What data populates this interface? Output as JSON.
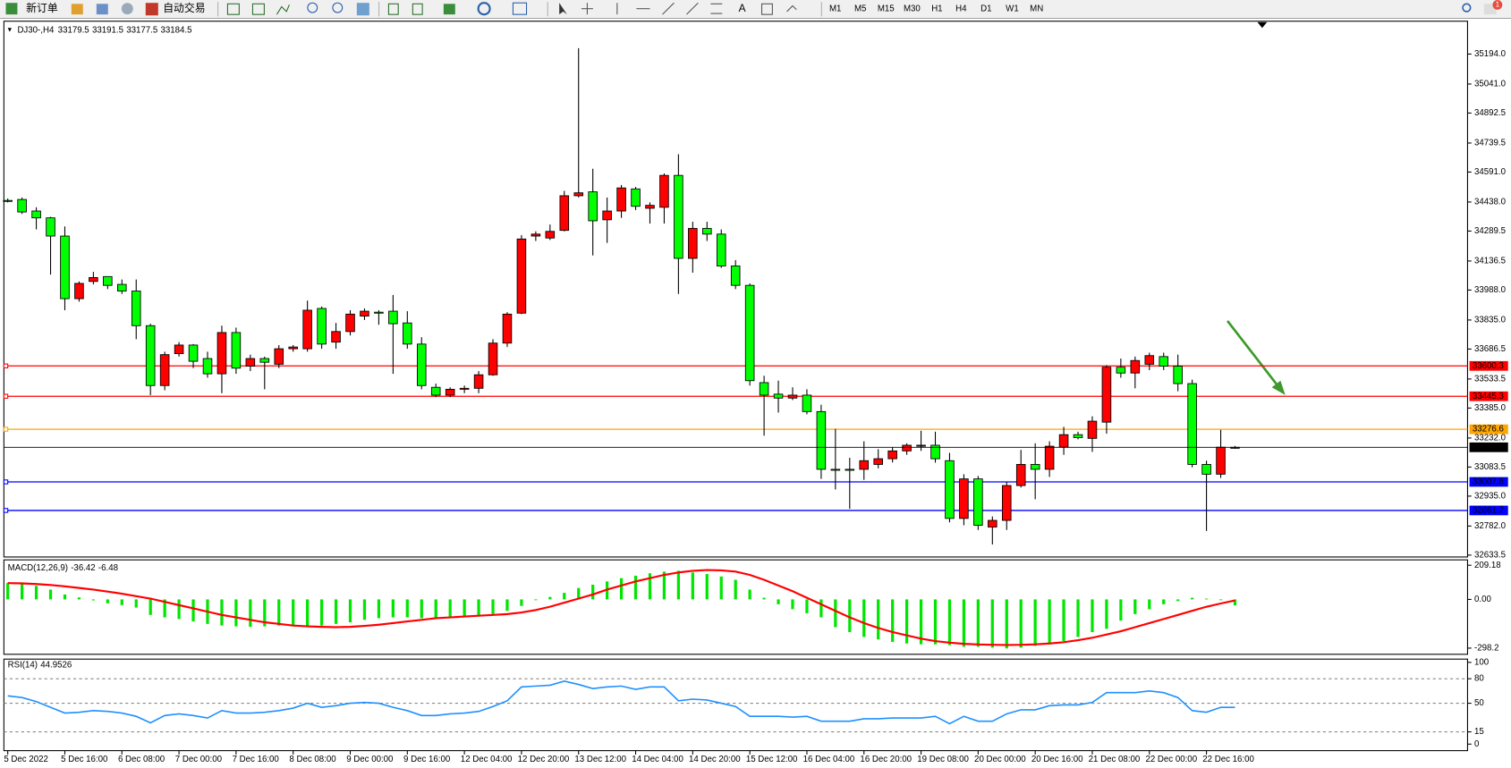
{
  "toolbar": {
    "new_order": "新订单",
    "auto_trading": "自动交易",
    "text_tool": "A",
    "timeframes": [
      "M1",
      "M5",
      "M15",
      "M30",
      "H1",
      "H4",
      "D1",
      "W1",
      "MN"
    ],
    "notifications": "1"
  },
  "chart_data": [
    {
      "type": "candlestick",
      "symbol": "DJ30-,H4",
      "up_color": "#ff0000",
      "down_color": "#00ff00",
      "categories": [
        "5 Dec 2022",
        null,
        null,
        null,
        "5 Dec 16:00",
        null,
        null,
        null,
        "6 Dec 08:00",
        null,
        null,
        null,
        "7 Dec 00:00",
        null,
        null,
        null,
        "7 Dec 16:00",
        null,
        null,
        null,
        "8 Dec 08:00",
        null,
        null,
        null,
        "9 Dec 00:00",
        null,
        null,
        null,
        "9 Dec 16:00",
        null,
        null,
        null,
        "12 Dec 04:00",
        null,
        null,
        null,
        "12 Dec 20:00",
        null,
        null,
        null,
        "13 Dec 12:00",
        null,
        null,
        null,
        "14 Dec 04:00",
        null,
        null,
        null,
        "14 Dec 20:00",
        null,
        null,
        null,
        "15 Dec 12:00",
        null,
        null,
        null,
        "16 Dec 04:00",
        null,
        null,
        null,
        "16 Dec 20:00",
        null,
        null,
        null,
        "19 Dec 08:00",
        null,
        null,
        null,
        "20 Dec 00:00",
        null,
        null,
        null,
        "20 Dec 16:00",
        null,
        null,
        null,
        "21 Dec 08:00",
        null,
        null,
        null,
        "22 Dec 00:00",
        null,
        null,
        null,
        "22 Dec 16:00",
        null,
        null
      ],
      "open": [
        34446,
        34451,
        34392,
        34357,
        34264,
        33944,
        34032,
        34057,
        34017,
        33983,
        33806,
        33500,
        33663,
        33707,
        33638,
        33560,
        33771,
        33599,
        33638,
        33609,
        33688,
        33688,
        33894,
        33722,
        33776,
        33855,
        33875,
        33880,
        33820,
        33712,
        33491,
        33451,
        33481,
        33486,
        33555,
        33717,
        33870,
        34264,
        34254,
        34293,
        34470,
        34490,
        34347,
        34392,
        34505,
        34406,
        34411,
        34574,
        34150,
        34303,
        34274,
        34111,
        34012,
        33515,
        33456,
        33436,
        33451,
        33367,
        33072,
        33072,
        33072,
        33097,
        33126,
        33166,
        33190,
        33195,
        33116,
        32821,
        33023,
        32777,
        32811,
        32989,
        33097,
        33072,
        33185,
        33249,
        33230,
        33313,
        33594,
        33564,
        33609,
        33648,
        33599,
        33510,
        33097,
        33047,
        33179.5
      ],
      "high": [
        34456,
        34461,
        34411,
        34362,
        34313,
        34032,
        34081,
        34057,
        34042,
        34042,
        33816,
        33673,
        33722,
        33712,
        33673,
        33806,
        33796,
        33658,
        33648,
        33707,
        33707,
        33934,
        33904,
        33820,
        33885,
        33894,
        33885,
        33963,
        33880,
        33747,
        33510,
        33491,
        33500,
        33574,
        33737,
        33875,
        34269,
        34288,
        34323,
        34495,
        35224,
        34608,
        34461,
        34525,
        34515,
        34436,
        34584,
        34682,
        34337,
        34337,
        34298,
        34141,
        34022,
        33550,
        33525,
        33491,
        33481,
        33402,
        33279,
        33131,
        33215,
        33175,
        33185,
        33205,
        33269,
        33264,
        33156,
        33047,
        33038,
        32831,
        33008,
        33171,
        33205,
        33215,
        33289,
        33264,
        33343,
        33604,
        33638,
        33648,
        33668,
        33668,
        33658,
        33530,
        33116,
        33274,
        33191.5
      ],
      "low": [
        34436,
        34377,
        34298,
        34067,
        33885,
        33929,
        34017,
        33993,
        33968,
        33737,
        33451,
        33476,
        33648,
        33589,
        33540,
        33461,
        33560,
        33574,
        33481,
        33589,
        33673,
        33673,
        33688,
        33688,
        33756,
        33835,
        33811,
        33560,
        33688,
        33481,
        33441,
        33441,
        33461,
        33461,
        33550,
        33697,
        33865,
        34239,
        34244,
        34288,
        34461,
        34165,
        34229,
        34357,
        34397,
        34328,
        34328,
        33968,
        34077,
        34239,
        34101,
        33993,
        33500,
        33244,
        33362,
        33426,
        33353,
        33023,
        32969,
        32870,
        33018,
        33077,
        33107,
        33146,
        33166,
        33106,
        32801,
        32786,
        32762,
        32688,
        32762,
        32979,
        32919,
        33033,
        33146,
        33225,
        33161,
        33254,
        33540,
        33486,
        33579,
        33579,
        33471,
        33082,
        32757,
        33028,
        33177.5
      ],
      "close": [
        34444,
        34387,
        34357,
        34264,
        33944,
        34022,
        34052,
        34012,
        33983,
        33806,
        33500,
        33658,
        33707,
        33624,
        33560,
        33771,
        33589,
        33638,
        33619,
        33688,
        33697,
        33885,
        33712,
        33776,
        33865,
        33880,
        33870,
        33816,
        33712,
        33500,
        33451,
        33481,
        33486,
        33555,
        33717,
        33865,
        34249,
        34274,
        34288,
        34470,
        34485,
        34342,
        34392,
        34510,
        34416,
        34421,
        34574,
        34150,
        34303,
        34274,
        34111,
        34012,
        33525,
        33451,
        33436,
        33451,
        33367,
        33072,
        33067,
        33067,
        33116,
        33126,
        33166,
        33195,
        33195,
        33126,
        32821,
        33023,
        32786,
        32811,
        32989,
        33097,
        33072,
        33190,
        33249,
        33234,
        33318,
        33594,
        33564,
        33628,
        33653,
        33599,
        33510,
        33097,
        33047,
        33185,
        33184.5
      ],
      "ylim": [
        32624,
        35362
      ],
      "yticks": [
        {
          "value": 35194,
          "label": "35194.0"
        },
        {
          "value": 35041,
          "label": "35041.0"
        },
        34892.5,
        34739.5,
        {
          "value": 34591,
          "label": "34591.0"
        },
        {
          "value": 34438,
          "label": "34438.0"
        },
        34289.5,
        34136.5,
        {
          "value": 33988,
          "label": "33988.0"
        },
        {
          "value": 33835,
          "label": "33835.0"
        },
        33686.5,
        33533.5,
        {
          "value": 33385,
          "label": "33385.0"
        },
        {
          "value": 33232,
          "label": "33232.0"
        },
        33083.5,
        {
          "value": 32935,
          "label": "32935.0"
        },
        {
          "value": 32782,
          "label": "32782.0"
        },
        32633.5
      ],
      "levels": [
        {
          "value": 33600.3,
          "color": "#ff0000"
        },
        {
          "value": 33445.3,
          "color": "#ff0000"
        },
        {
          "value": 33276.6,
          "color": "#ffa500"
        },
        {
          "value": 33007.6,
          "color": "#0000ff"
        },
        {
          "value": 32861.7,
          "color": "#0000ff"
        }
      ]
    },
    {
      "type": "macd",
      "title": "MACD(12,26,9)",
      "ylim": [
        -336,
        242
      ],
      "yticks": [
        209.18,
        {
          "value": 0,
          "label": "0.00"
        },
        -298.2
      ],
      "series": [
        {
          "color": "#00e600",
          "values": [
            100,
            95,
            83,
            60,
            30,
            12,
            -6,
            -24,
            -35,
            -50,
            -95,
            -110,
            -120,
            -135,
            -150,
            -160,
            -165,
            -168,
            -165,
            -160,
            -160,
            -165,
            -160,
            -150,
            -140,
            -125,
            -115,
            -110,
            -110,
            -115,
            -120,
            -115,
            -110,
            -100,
            -90,
            -70,
            -40,
            -5,
            15,
            40,
            70,
            90,
            110,
            130,
            145,
            160,
            170,
            175,
            165,
            155,
            140,
            120,
            60,
            10,
            -30,
            -60,
            -85,
            -110,
            -170,
            -200,
            -230,
            -245,
            -260,
            -270,
            -275,
            -275,
            -280,
            -290,
            -290,
            -295,
            -300,
            -295,
            -285,
            -275,
            -255,
            -230,
            -200,
            -180,
            -130,
            -90,
            -60,
            -30,
            -10,
            10,
            5,
            -5,
            -36.42
          ]
        },
        {
          "color": "#ff0000",
          "values": [
            100,
            98,
            94,
            88,
            80,
            70,
            60,
            48,
            35,
            20,
            5,
            -15,
            -35,
            -55,
            -75,
            -95,
            -110,
            -125,
            -140,
            -150,
            -160,
            -165,
            -168,
            -170,
            -168,
            -162,
            -155,
            -145,
            -135,
            -125,
            -115,
            -110,
            -105,
            -100,
            -95,
            -90,
            -80,
            -65,
            -45,
            -20,
            5,
            30,
            60,
            85,
            110,
            130,
            150,
            165,
            175,
            180,
            178,
            170,
            150,
            120,
            85,
            50,
            10,
            -30,
            -70,
            -110,
            -145,
            -175,
            -200,
            -220,
            -240,
            -255,
            -265,
            -272,
            -276,
            -278,
            -279,
            -278,
            -275,
            -270,
            -262,
            -250,
            -235,
            -215,
            -195,
            -170,
            -145,
            -120,
            -95,
            -70,
            -45,
            -25,
            -6.48
          ]
        }
      ]
    },
    {
      "type": "rsi",
      "title": "RSI(14)",
      "ylim": [
        -8,
        104
      ],
      "yticks": [
        100,
        80,
        50,
        15,
        0
      ],
      "levels": [
        80,
        50,
        15
      ],
      "series": [
        {
          "color": "#1e90ff",
          "values": [
            59,
            57,
            52,
            45,
            38,
            39,
            41,
            40,
            38,
            34,
            26,
            35,
            37,
            35,
            32,
            41,
            38,
            38,
            39,
            41,
            44,
            50,
            45,
            47,
            50,
            51,
            50,
            45,
            41,
            35,
            35,
            37,
            38,
            40,
            46,
            53,
            70,
            71,
            72,
            77,
            73,
            68,
            70,
            71,
            67,
            70,
            70,
            53,
            55,
            54,
            50,
            46,
            34,
            34,
            34,
            33,
            34,
            28,
            28,
            28,
            31,
            31,
            32,
            32,
            32,
            34,
            25,
            34,
            28,
            28,
            37,
            42,
            42,
            47,
            48,
            48,
            51,
            63,
            63,
            63,
            65,
            63,
            57,
            41,
            39,
            45,
            44.9526
          ]
        }
      ]
    }
  ]
}
